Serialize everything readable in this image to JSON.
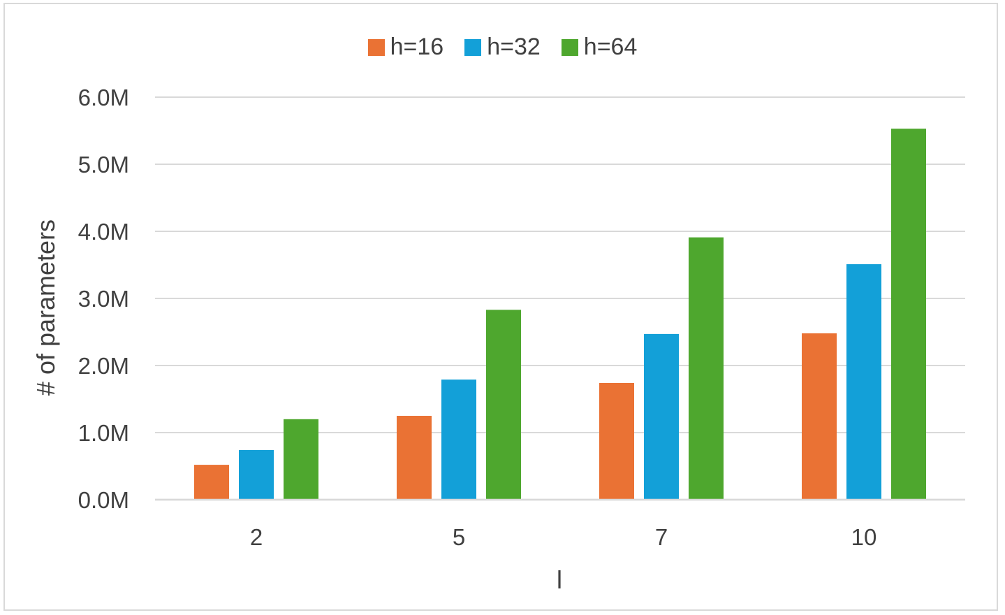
{
  "chart_data": {
    "type": "bar",
    "title": "",
    "xlabel": "l",
    "ylabel": "# of parameters",
    "categories": [
      "2",
      "5",
      "7",
      "10"
    ],
    "series": [
      {
        "name": "h=16",
        "color": "#ea7234",
        "values": [
          0.52,
          1.25,
          1.74,
          2.48
        ]
      },
      {
        "name": "h=32",
        "color": "#13a0d8",
        "values": [
          0.74,
          1.79,
          2.47,
          3.51
        ]
      },
      {
        "name": "h=64",
        "color": "#4ea72e",
        "values": [
          1.2,
          2.83,
          3.91,
          5.53
        ]
      }
    ],
    "ylim": [
      0,
      6
    ],
    "yticks": [
      0,
      1,
      2,
      3,
      4,
      5,
      6
    ],
    "ytick_labels": [
      "0.0M",
      "1.0M",
      "2.0M",
      "3.0M",
      "4.0M",
      "5.0M",
      "6.0M"
    ],
    "grid": true,
    "legend_position": "top-center"
  }
}
